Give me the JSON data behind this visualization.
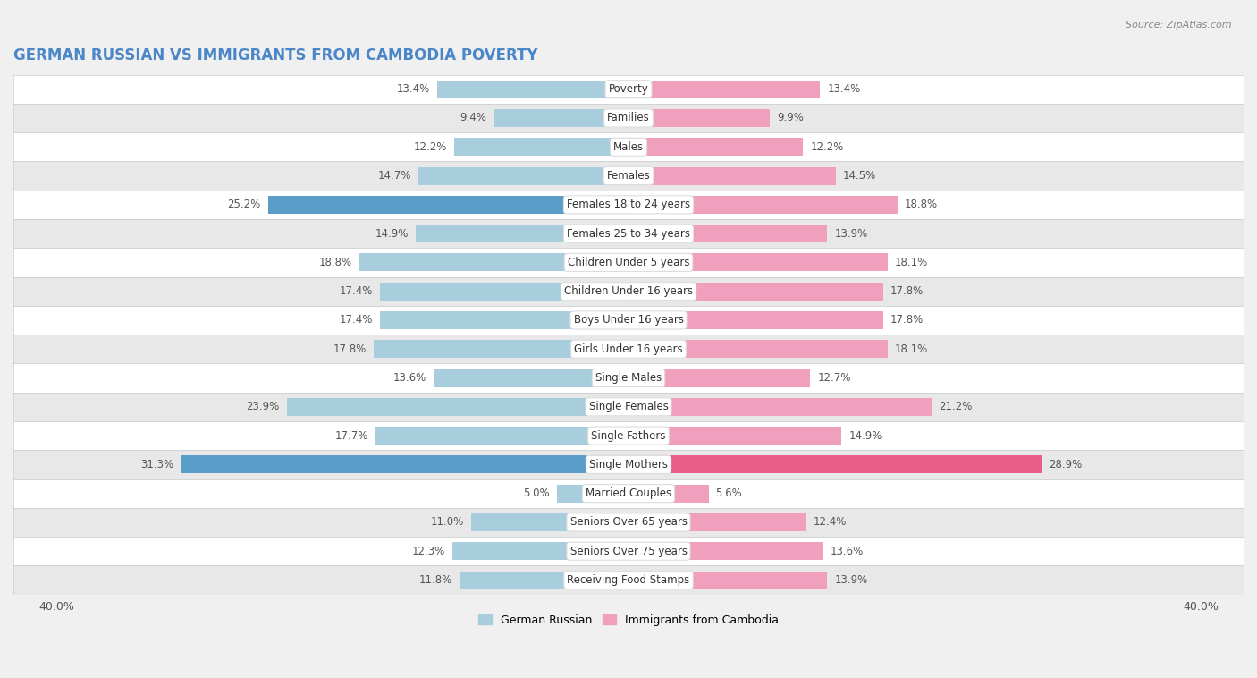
{
  "title": "GERMAN RUSSIAN VS IMMIGRANTS FROM CAMBODIA POVERTY",
  "source": "Source: ZipAtlas.com",
  "categories": [
    "Poverty",
    "Families",
    "Males",
    "Females",
    "Females 18 to 24 years",
    "Females 25 to 34 years",
    "Children Under 5 years",
    "Children Under 16 years",
    "Boys Under 16 years",
    "Girls Under 16 years",
    "Single Males",
    "Single Females",
    "Single Fathers",
    "Single Mothers",
    "Married Couples",
    "Seniors Over 65 years",
    "Seniors Over 75 years",
    "Receiving Food Stamps"
  ],
  "german_russian": [
    13.4,
    9.4,
    12.2,
    14.7,
    25.2,
    14.9,
    18.8,
    17.4,
    17.4,
    17.8,
    13.6,
    23.9,
    17.7,
    31.3,
    5.0,
    11.0,
    12.3,
    11.8
  ],
  "cambodia": [
    13.4,
    9.9,
    12.2,
    14.5,
    18.8,
    13.9,
    18.1,
    17.8,
    17.8,
    18.1,
    12.7,
    21.2,
    14.9,
    28.9,
    5.6,
    12.4,
    13.6,
    13.9
  ],
  "blue_color": "#A8CEDE",
  "pink_color": "#F0A0BC",
  "highlight_blue": "#5B9DC9",
  "highlight_pink": "#E8608A",
  "bg_color": "#f0f0f0",
  "row_color_light": "#ffffff",
  "row_color_dark": "#e8e8e8",
  "xlim": 40.0,
  "legend_blue": "German Russian",
  "legend_pink": "Immigrants from Cambodia",
  "title_color": "#4a86c8",
  "label_color": "#555555",
  "value_color": "#555555"
}
